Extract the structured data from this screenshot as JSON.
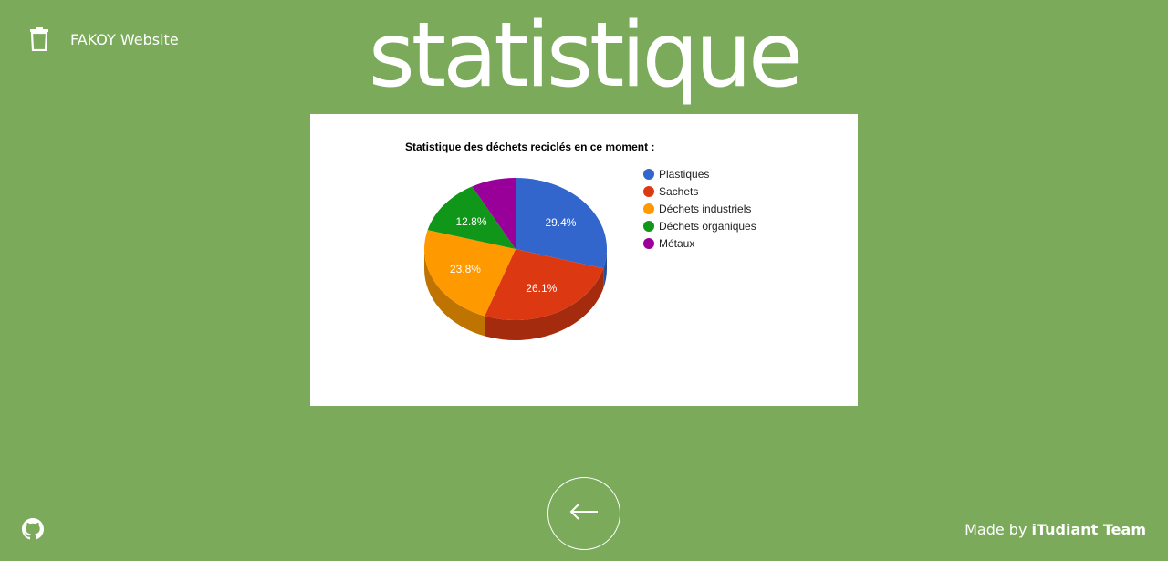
{
  "header": {
    "brand_icon": "trash-icon",
    "brand_label": "FAKOY Website"
  },
  "page": {
    "title": "statistique"
  },
  "chart_data": {
    "type": "pie",
    "title": "Statistique des déchets reciclés en ce moment :",
    "legend_position": "right",
    "three_d": true,
    "slices": [
      {
        "name": "Plastiques",
        "value": 29.4,
        "label": "29.4%",
        "color": "#3366cc"
      },
      {
        "name": "Sachets",
        "value": 26.1,
        "label": "26.1%",
        "color": "#dc3912"
      },
      {
        "name": "Déchets industriels",
        "value": 23.8,
        "label": "23.8%",
        "color": "#ff9900"
      },
      {
        "name": "Déchets organiques",
        "value": 12.8,
        "label": "12.8%",
        "color": "#109618"
      },
      {
        "name": "Métaux",
        "value": 7.9,
        "label": "",
        "color": "#990099"
      }
    ]
  },
  "footer": {
    "github_icon": "github-icon",
    "back_icon": "arrow-left-icon",
    "credit_prefix": "Made by",
    "credit_team": "iTudiant Team"
  }
}
